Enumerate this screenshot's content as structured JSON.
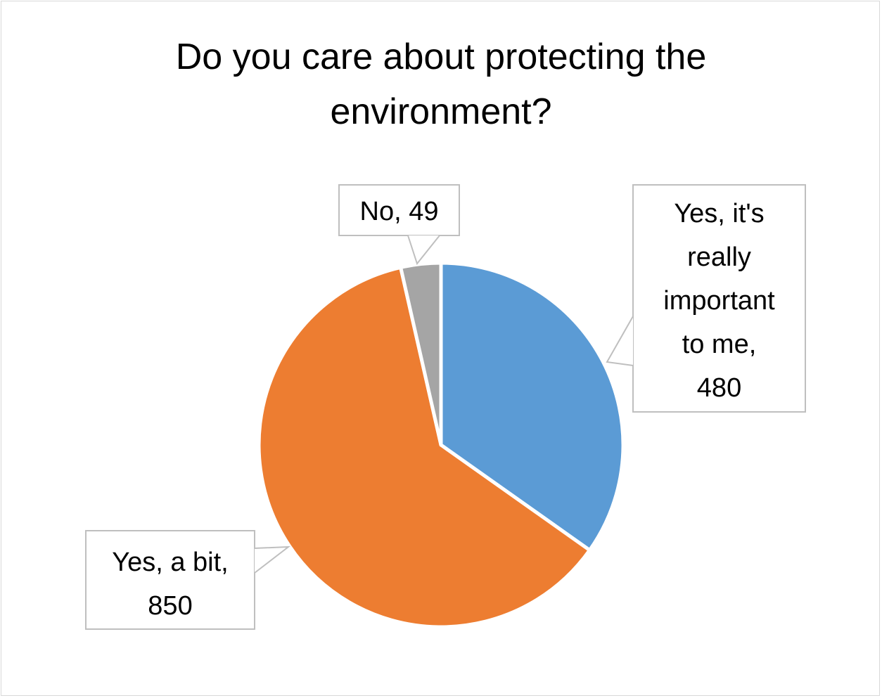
{
  "chart_data": {
    "type": "pie",
    "title_lines": [
      "Do you care about protecting the",
      "environment?"
    ],
    "slices": [
      {
        "label": "Yes, it's really important to me",
        "value": 480,
        "color": "#5b9bd5",
        "callout_lines": [
          "Yes, it's",
          "really",
          "important",
          "to me,",
          "480"
        ]
      },
      {
        "label": "Yes, a bit",
        "value": 850,
        "color": "#ed7d31",
        "callout_lines": [
          "Yes, a bit,",
          "850"
        ]
      },
      {
        "label": "No",
        "value": 49,
        "color": "#a5a5a5",
        "callout_lines": [
          "No, 49"
        ]
      }
    ],
    "start_angle_deg": 0,
    "direction": "clockwise",
    "legend": "none"
  }
}
